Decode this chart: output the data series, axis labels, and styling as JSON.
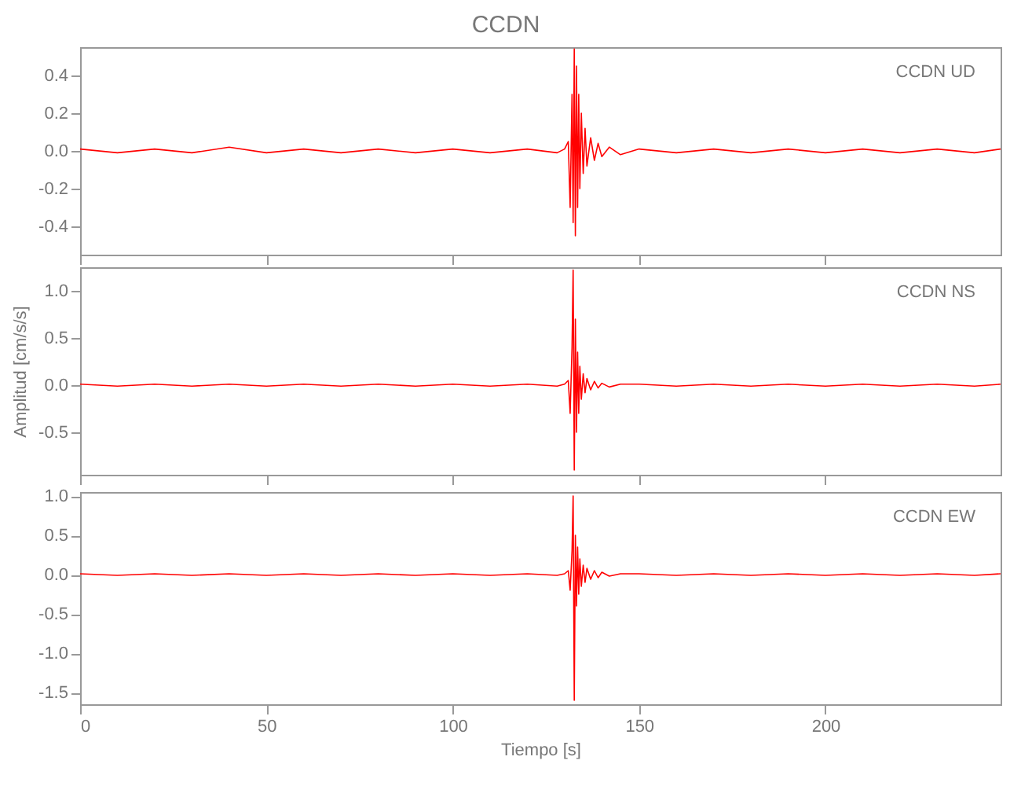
{
  "chart_data": [
    {
      "type": "line",
      "title": "CCDN",
      "annotations": [
        "CCDN   UD"
      ],
      "tick_labels": "y",
      "grid": false,
      "x": [
        0,
        10,
        20,
        30,
        40,
        50,
        60,
        70,
        80,
        90,
        100,
        110,
        120,
        128,
        130,
        131,
        131.5,
        132,
        132.3,
        132.6,
        132.9,
        133.2,
        133.5,
        133.8,
        134.1,
        134.5,
        135,
        135.5,
        136,
        137,
        138,
        139,
        140,
        142,
        145,
        150,
        160,
        170,
        180,
        190,
        200,
        210,
        220,
        230,
        240,
        247
      ],
      "series": [
        {
          "color": "#ff0000",
          "values": [
            0.01,
            -0.01,
            0.01,
            -0.01,
            0.02,
            -0.01,
            0.01,
            -0.01,
            0.01,
            -0.01,
            0.01,
            -0.01,
            0.01,
            -0.01,
            0.01,
            0.05,
            -0.3,
            0.3,
            -0.38,
            0.54,
            -0.45,
            0.45,
            -0.3,
            0.3,
            -0.2,
            0.2,
            -0.12,
            0.12,
            -0.08,
            0.07,
            -0.05,
            0.04,
            -0.03,
            0.02,
            -0.02,
            0.01,
            -0.01,
            0.01,
            -0.01,
            0.01,
            -0.01,
            0.01,
            -0.01,
            0.01,
            -0.01,
            0.01
          ]
        }
      ],
      "xlim": [
        0,
        247
      ],
      "xticks": [
        0,
        50,
        100,
        150,
        200
      ],
      "ylim": [
        -0.55,
        0.55
      ],
      "yticks": [
        {
          "value": -0.4,
          "label": "-0.4"
        },
        {
          "value": -0.2,
          "label": "-0.2"
        },
        {
          "value": 0,
          "label": "0.0"
        },
        {
          "value": 0.2,
          "label": "0.2"
        },
        {
          "value": 0.4,
          "label": "0.4"
        }
      ]
    },
    {
      "type": "line",
      "ylabel": "Amplitud [cm/s/s]",
      "annotations": [
        "CCDN   NS"
      ],
      "tick_labels": "y",
      "grid": false,
      "x": [
        0,
        10,
        20,
        30,
        40,
        50,
        60,
        70,
        80,
        90,
        100,
        110,
        120,
        128,
        130,
        131,
        131.5,
        132,
        132.3,
        132.6,
        132.9,
        133.2,
        133.5,
        133.8,
        134.1,
        134.5,
        135,
        135.5,
        136,
        137,
        138,
        139,
        140,
        142,
        145,
        150,
        160,
        170,
        180,
        190,
        200,
        210,
        220,
        230,
        240,
        247
      ],
      "series": [
        {
          "color": "#ff0000",
          "values": [
            0.01,
            -0.01,
            0.01,
            -0.01,
            0.01,
            -0.01,
            0.01,
            -0.01,
            0.01,
            -0.01,
            0.01,
            -0.01,
            0.01,
            -0.01,
            0.01,
            0.05,
            -0.3,
            0.4,
            1.22,
            -0.9,
            0.7,
            -0.5,
            0.35,
            -0.3,
            0.2,
            -0.15,
            0.12,
            -0.08,
            0.07,
            -0.05,
            0.04,
            -0.03,
            0.02,
            -0.02,
            0.01,
            0.01,
            -0.01,
            0.01,
            -0.01,
            0.01,
            -0.01,
            0.01,
            -0.01,
            0.01,
            -0.01,
            0.01
          ]
        }
      ],
      "xlim": [
        0,
        247
      ],
      "xticks": [
        0,
        50,
        100,
        150,
        200
      ],
      "ylim": [
        -0.95,
        1.25
      ],
      "yticks": [
        {
          "value": -0.5,
          "label": "-0.5"
        },
        {
          "value": 0,
          "label": "0.0"
        },
        {
          "value": 0.5,
          "label": "0.5"
        },
        {
          "value": 1,
          "label": "1.0"
        }
      ]
    },
    {
      "type": "line",
      "xlabel": "Tiempo [s]",
      "annotations": [
        "CCDN   EW"
      ],
      "grid": false,
      "x": [
        0,
        10,
        20,
        30,
        40,
        50,
        60,
        70,
        80,
        90,
        100,
        110,
        120,
        128,
        130,
        131,
        131.5,
        132,
        132.3,
        132.6,
        132.9,
        133.2,
        133.5,
        133.8,
        134.1,
        134.5,
        135,
        135.5,
        136,
        137,
        138,
        139,
        140,
        142,
        145,
        150,
        160,
        170,
        180,
        190,
        200,
        210,
        220,
        230,
        240,
        247
      ],
      "series": [
        {
          "color": "#ff0000",
          "values": [
            0.01,
            -0.01,
            0.01,
            -0.01,
            0.01,
            -0.01,
            0.01,
            -0.01,
            0.01,
            -0.01,
            0.01,
            -0.01,
            0.01,
            -0.01,
            0.01,
            0.05,
            -0.2,
            0.3,
            1.0,
            -1.6,
            0.5,
            -0.4,
            0.35,
            -0.25,
            0.2,
            -0.15,
            0.12,
            -0.1,
            0.08,
            -0.06,
            0.05,
            -0.04,
            0.03,
            -0.02,
            0.01,
            0.01,
            -0.01,
            0.01,
            -0.01,
            0.01,
            -0.01,
            0.01,
            -0.01,
            0.01,
            -0.01,
            0.01
          ]
        }
      ],
      "xlim": [
        0,
        247
      ],
      "xticks": [
        0,
        50,
        100,
        150,
        200
      ],
      "ylim": [
        -1.65,
        1.05
      ],
      "yticks": [
        {
          "value": -1.5,
          "label": "-1.5"
        },
        {
          "value": -1,
          "label": "-1.0"
        },
        {
          "value": -0.5,
          "label": "-0.5"
        },
        {
          "value": 0,
          "label": "0.0"
        },
        {
          "value": 0.5,
          "label": "0.5"
        },
        {
          "value": 1,
          "label": "1.0"
        }
      ]
    }
  ]
}
